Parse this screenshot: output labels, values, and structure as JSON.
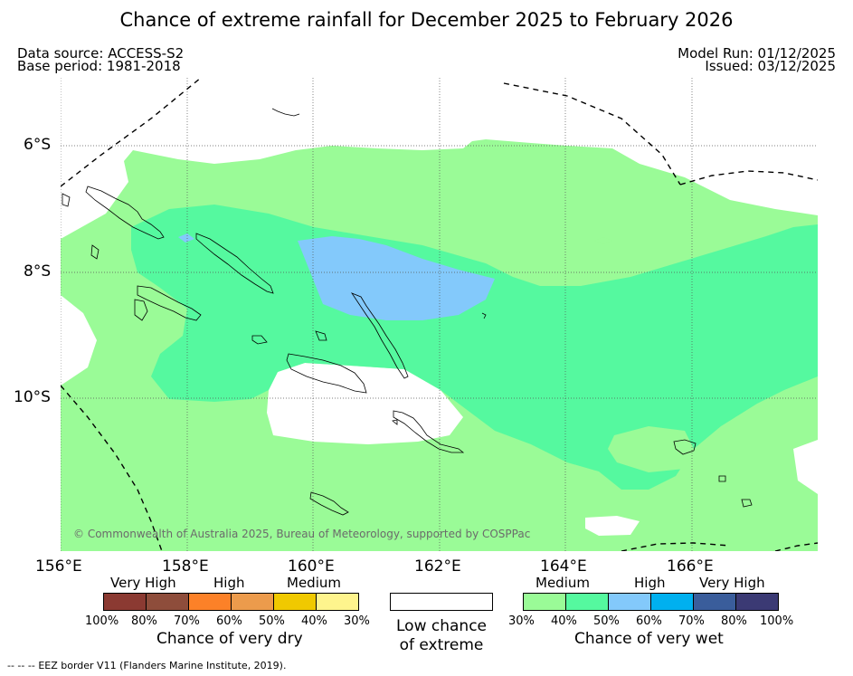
{
  "title": "Chance of extreme rainfall for December 2025 to February 2026",
  "header": {
    "data_source": "Data source: ACCESS-S2",
    "base_period": "Base period: 1981-2018",
    "model_run": "Model Run: 01/12/2025",
    "issued": "Issued: 03/12/2025"
  },
  "map": {
    "lat_labels": [
      "6°S",
      "8°S",
      "10°S"
    ],
    "lon_labels": [
      "156°E",
      "158°E",
      "160°E",
      "162°E",
      "164°E",
      "166°E"
    ],
    "copyright": "© Commonwealth of Australia 2025, Bureau of Meteorology, supported by COSPPac",
    "colors": {
      "land_outline": "#000000",
      "gridline": "#555555",
      "eez_border": "#000000"
    }
  },
  "legend": {
    "dry": {
      "groups": [
        "Very High",
        "High",
        "Medium"
      ],
      "ticks": [
        "100%",
        "80%",
        "70%",
        "60%",
        "50%",
        "40%",
        "30%"
      ],
      "colors": [
        "#8b3a32",
        "#8e4d3b",
        "#fc8128",
        "#ec9b4c",
        "#f0c900",
        "#fef48d"
      ],
      "title": "Chance of very dry"
    },
    "neutral": {
      "title_line1": "Low chance",
      "title_line2": "of extreme",
      "color": "#ffffff"
    },
    "wet": {
      "groups": [
        "Medium",
        "High",
        "Very High"
      ],
      "ticks": [
        "30%",
        "40%",
        "50%",
        "60%",
        "70%",
        "80%",
        "100%"
      ],
      "colors": [
        "#9afb97",
        "#55f99f",
        "#83c9fb",
        "#00b0ef",
        "#3a5d9b",
        "#3b3a74"
      ],
      "title": "Chance of very wet"
    }
  },
  "footer": {
    "eez_marker": "-- -- --",
    "eez_note": "EEZ border V11 (Flanders Marine Institute, 2019)."
  }
}
